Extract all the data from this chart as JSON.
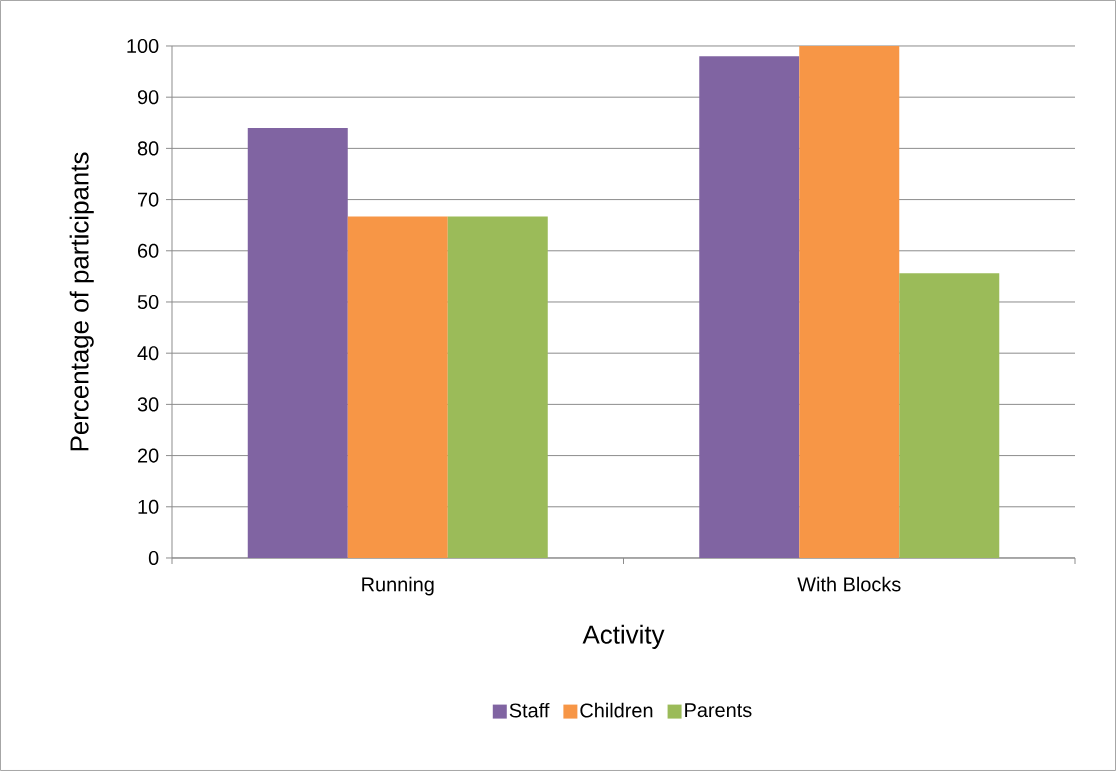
{
  "chart_data": {
    "type": "bar",
    "xlabel": "Activity",
    "ylabel": "Percentage of participants",
    "categories": [
      "Running",
      "With Blocks"
    ],
    "series": [
      {
        "name": "Staff",
        "color": "#8064a2",
        "values": [
          84,
          98
        ]
      },
      {
        "name": "Children",
        "color": "#f79646",
        "values": [
          66.7,
          100
        ]
      },
      {
        "name": "Parents",
        "color": "#9bbb59",
        "values": [
          66.7,
          55.6
        ]
      }
    ],
    "ylim": [
      0,
      100
    ],
    "yticks": [
      0,
      10,
      20,
      30,
      40,
      50,
      60,
      70,
      80,
      90,
      100
    ],
    "grid": "y",
    "legend": "bottom"
  }
}
